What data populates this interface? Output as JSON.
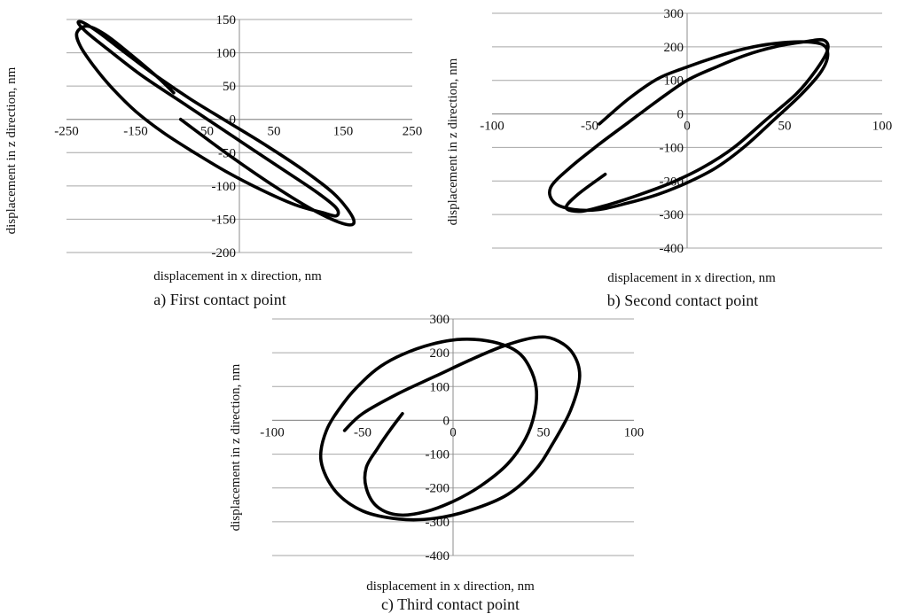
{
  "chart_data": [
    {
      "id": "a",
      "type": "line",
      "caption": "a) First contact point",
      "xlabel": "displacement in x  direction, nm",
      "ylabel": "displacement in z direction, nm",
      "xlim": [
        -250,
        250
      ],
      "ylim": [
        -200,
        150
      ],
      "xticks": [
        -250,
        -150,
        -50,
        50,
        150,
        250
      ],
      "yticks": [
        150,
        100,
        50,
        0,
        -50,
        -100,
        -150,
        -200
      ],
      "grid": true,
      "series": [
        {
          "x": [
            -95,
            -120,
            -160,
            -195,
            -220,
            -235,
            -230,
            -212,
            -185,
            -150,
            -110,
            -65,
            -20,
            30,
            80,
            120,
            140,
            140,
            110,
            55,
            -10,
            -75,
            -140,
            -190,
            -220,
            -233,
            -225,
            -200,
            -165,
            -120,
            -70,
            -15,
            40,
            95,
            140,
            165,
            155,
            110,
            50,
            -20,
            -85
          ],
          "y": [
            40,
            65,
            100,
            128,
            140,
            130,
            110,
            82,
            48,
            12,
            -20,
            -50,
            -78,
            -105,
            -128,
            -140,
            -145,
            -133,
            -108,
            -70,
            -25,
            20,
            65,
            105,
            130,
            145,
            145,
            128,
            100,
            65,
            30,
            -5,
            -40,
            -78,
            -115,
            -150,
            -158,
            -138,
            -100,
            -50,
            0
          ]
        }
      ]
    },
    {
      "id": "b",
      "type": "line",
      "caption": "b) Second contact point",
      "xlabel": "displacement in x  direction, nm",
      "ylabel": "displacement in z  direction, nm",
      "xlim": [
        -100,
        100
      ],
      "ylim": [
        -400,
        300
      ],
      "xticks": [
        -100,
        -50,
        0,
        50,
        100
      ],
      "yticks": [
        300,
        200,
        100,
        0,
        -100,
        -200,
        -300,
        -400
      ],
      "grid": true,
      "series": [
        {
          "x": [
            -45,
            -30,
            -15,
            0,
            15,
            30,
            45,
            60,
            70,
            72,
            68,
            58,
            45,
            30,
            15,
            0,
            -15,
            -30,
            -45,
            -58,
            -68,
            -70,
            -60,
            -45,
            -30,
            -15,
            0,
            15,
            30,
            45,
            60,
            70,
            72,
            66,
            56,
            40,
            24,
            8,
            -8,
            -24,
            -40,
            -54,
            -62,
            -56,
            -42
          ],
          "y": [
            -30,
            45,
            105,
            140,
            170,
            195,
            210,
            215,
            205,
            170,
            120,
            55,
            -15,
            -95,
            -160,
            -205,
            -240,
            -265,
            -285,
            -285,
            -265,
            -220,
            -160,
            -90,
            -25,
            40,
            100,
            140,
            175,
            200,
            215,
            220,
            190,
            130,
            60,
            -20,
            -100,
            -160,
            -205,
            -240,
            -270,
            -290,
            -280,
            -240,
            -180
          ]
        }
      ]
    },
    {
      "id": "c",
      "type": "line",
      "caption": "c) Third contact point",
      "xlabel": "displacement in x  direction, nm",
      "ylabel": "displacement in z  direction, nm",
      "xlim": [
        -100,
        100
      ],
      "ylim": [
        -400,
        300
      ],
      "xticks": [
        -100,
        -50,
        0,
        50,
        100
      ],
      "yticks": [
        300,
        200,
        100,
        0,
        -100,
        -200,
        -300,
        -400
      ],
      "grid": true,
      "series": [
        {
          "x": [
            -28,
            -35,
            -42,
            -48,
            -48,
            -42,
            -30,
            -15,
            0,
            15,
            30,
            40,
            45,
            46,
            42,
            35,
            22,
            5,
            -12,
            -28,
            -40,
            -50,
            -60,
            -70,
            -73,
            -65,
            -50,
            -30,
            -10,
            10,
            30,
            45,
            55,
            65,
            70,
            66,
            56,
            45,
            28,
            10,
            -10,
            -30,
            -50,
            -60
          ],
          "y": [
            20,
            -30,
            -85,
            -140,
            -200,
            -255,
            -280,
            -270,
            -240,
            -195,
            -130,
            -55,
            20,
            95,
            160,
            205,
            232,
            240,
            225,
            195,
            160,
            115,
            55,
            -30,
            -120,
            -210,
            -268,
            -292,
            -290,
            -265,
            -220,
            -150,
            -70,
            30,
            130,
            200,
            240,
            245,
            220,
            180,
            130,
            80,
            20,
            -30
          ]
        }
      ]
    }
  ]
}
